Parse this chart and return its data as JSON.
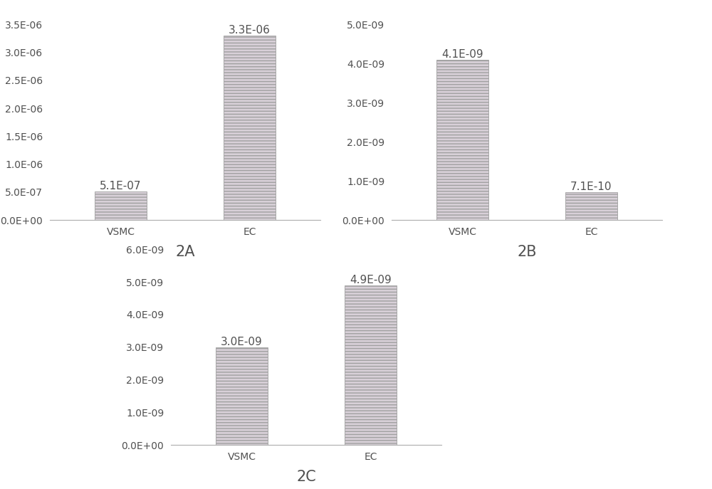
{
  "chart_A": {
    "categories": [
      "VSMC",
      "EC"
    ],
    "values": [
      5.1e-07,
      3.3e-06
    ],
    "label": "2A",
    "ylim": [
      0,
      3.5e-06
    ],
    "yticks": [
      0.0,
      5e-07,
      1e-06,
      1.5e-06,
      2e-06,
      2.5e-06,
      3e-06,
      3.5e-06
    ],
    "yticklabels": [
      "0.0E+00",
      "5.0E-07",
      "1.0E-06",
      "1.5E-06",
      "2.0E-06",
      "2.5E-06",
      "3.0E-06",
      "3.5E-06"
    ],
    "bar_labels": [
      "5.1E-07",
      "3.3E-06"
    ]
  },
  "chart_B": {
    "categories": [
      "VSMC",
      "EC"
    ],
    "values": [
      4.1e-09,
      7.1e-10
    ],
    "label": "2B",
    "ylim": [
      0,
      5e-09
    ],
    "yticks": [
      0.0,
      1e-09,
      2e-09,
      3e-09,
      4e-09,
      5e-09
    ],
    "yticklabels": [
      "0.0E+00",
      "1.0E-09",
      "2.0E-09",
      "3.0E-09",
      "4.0E-09",
      "5.0E-09"
    ],
    "bar_labels": [
      "4.1E-09",
      "7.1E-10"
    ]
  },
  "chart_C": {
    "categories": [
      "VSMC",
      "EC"
    ],
    "values": [
      3e-09,
      4.9e-09
    ],
    "label": "2C",
    "ylim": [
      0,
      6e-09
    ],
    "yticks": [
      0.0,
      1e-09,
      2e-09,
      3e-09,
      4e-09,
      5e-09,
      6e-09
    ],
    "yticklabels": [
      "0.0E+00",
      "1.0E-09",
      "2.0E-09",
      "3.0E-09",
      "4.0E-09",
      "5.0E-09",
      "6.0E-09"
    ],
    "bar_labels": [
      "3.0E-09",
      "4.9E-09"
    ]
  },
  "bar_color": "#d8d0d8",
  "bar_edge_color": "#a0a0a0",
  "background_color": "#ffffff",
  "text_color": "#505050",
  "label_fontsize": 11,
  "tick_fontsize": 10,
  "chart_label_fontsize": 15,
  "bar_width": 0.4,
  "hatch": "----"
}
